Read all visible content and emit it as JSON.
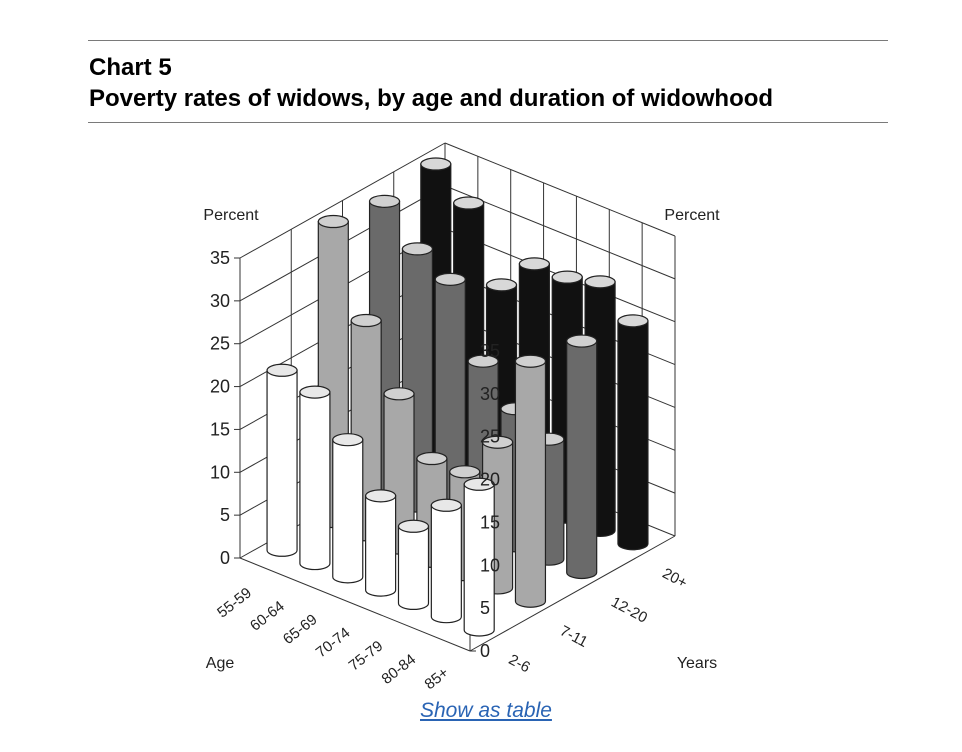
{
  "header": {
    "label": "Chart 5",
    "title": "Poverty rates of widows, by age and duration of widowhood"
  },
  "link": {
    "show_table": "Show as table"
  },
  "chart_data": {
    "type": "bar",
    "subtype": "3d-cylinder",
    "title": "Poverty rates of widows, by age and duration of widowhood",
    "ylabel_left": "Percent",
    "ylabel_right": "Percent",
    "x_axis_label": "Age",
    "z_axis_label": "Years",
    "categories": [
      "55-59",
      "60-64",
      "65-69",
      "70-74",
      "75-79",
      "80-84",
      "85+"
    ],
    "series_axis": [
      "2-6",
      "7-11",
      "12-20",
      "20+"
    ],
    "yticks": [
      "0",
      "5",
      "10",
      "15",
      "20",
      "25",
      "30",
      "35"
    ],
    "ylim": [
      0,
      35
    ],
    "grid": true,
    "series": [
      {
        "name": "2-6",
        "color": "#ffffff",
        "values": [
          21,
          20,
          16,
          11,
          9,
          13,
          17
        ]
      },
      {
        "name": "7-11",
        "color": "#a8a8a8",
        "values": [
          35,
          25,
          18,
          12,
          12,
          17,
          28
        ]
      },
      {
        "name": "12-20",
        "color": "#6a6a6a",
        "values": [
          34,
          30,
          28,
          20,
          16,
          14,
          27
        ]
      },
      {
        "name": "20+",
        "color": "#111111",
        "values": [
          35,
          32,
          24,
          28,
          28,
          29,
          26
        ]
      }
    ]
  }
}
